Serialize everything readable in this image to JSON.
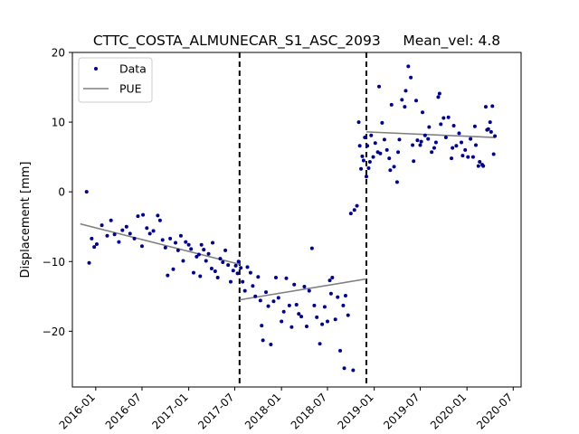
{
  "chart_data": {
    "type": "scatter",
    "title": "CTTC_COSTA_ALMUNECAR_S1_ASC_2093     Mean_vel: 4.8",
    "xlabel": "",
    "ylabel": "Displacement [mm]",
    "xlim": [
      "2015-10-01",
      "2020-08-01"
    ],
    "ylim": [
      -28,
      20
    ],
    "x_ticks": [
      "2016-01",
      "2016-07",
      "2017-01",
      "2017-07",
      "2018-01",
      "2018-07",
      "2019-01",
      "2019-07",
      "2020-01",
      "2020-07"
    ],
    "y_ticks": [
      -20,
      -10,
      0,
      10,
      20
    ],
    "grid": false,
    "legend": {
      "position": "top-left",
      "entries": [
        {
          "label": "Data",
          "marker": "dot",
          "color": "#00008b"
        },
        {
          "label": "PUE",
          "marker": "line",
          "color": "#808080"
        }
      ]
    },
    "breaks": [
      "2017-07-20",
      "2018-12-01"
    ],
    "series": [
      {
        "name": "Data",
        "color": "#00008b",
        "points": [
          [
            "2015-11-26",
            0.0
          ],
          [
            "2015-12-06",
            -10.2
          ],
          [
            "2015-12-16",
            -6.7
          ],
          [
            "2015-12-26",
            -7.9
          ],
          [
            "2016-01-05",
            -7.5
          ],
          [
            "2016-01-25",
            -4.8
          ],
          [
            "2016-02-15",
            -6.3
          ],
          [
            "2016-03-01",
            -4.1
          ],
          [
            "2016-03-15",
            -6.1
          ],
          [
            "2016-04-01",
            -7.2
          ],
          [
            "2016-04-15",
            -5.5
          ],
          [
            "2016-05-01",
            -5.0
          ],
          [
            "2016-05-15",
            -6.0
          ],
          [
            "2016-06-01",
            -6.7
          ],
          [
            "2016-06-15",
            -3.5
          ],
          [
            "2016-07-01",
            -7.8
          ],
          [
            "2016-07-05",
            -3.3
          ],
          [
            "2016-07-20",
            -5.2
          ],
          [
            "2016-08-01",
            -6.0
          ],
          [
            "2016-08-15",
            -5.6
          ],
          [
            "2016-09-01",
            -3.4
          ],
          [
            "2016-09-10",
            -4.1
          ],
          [
            "2016-09-20",
            -6.9
          ],
          [
            "2016-10-01",
            -8.0
          ],
          [
            "2016-10-10",
            -12.0
          ],
          [
            "2016-10-20",
            -6.7
          ],
          [
            "2016-11-01",
            -11.1
          ],
          [
            "2016-11-10",
            -7.3
          ],
          [
            "2016-11-20",
            -8.4
          ],
          [
            "2016-12-01",
            -6.3
          ],
          [
            "2016-12-10",
            -9.9
          ],
          [
            "2016-12-20",
            -7.2
          ],
          [
            "2017-01-01",
            -7.6
          ],
          [
            "2017-01-10",
            -8.2
          ],
          [
            "2017-01-20",
            -11.6
          ],
          [
            "2017-02-01",
            -9.3
          ],
          [
            "2017-02-10",
            -9.0
          ],
          [
            "2017-02-15",
            -12.1
          ],
          [
            "2017-02-20",
            -7.6
          ],
          [
            "2017-03-01",
            -8.3
          ],
          [
            "2017-03-10",
            -9.9
          ],
          [
            "2017-03-20",
            -8.9
          ],
          [
            "2017-04-01",
            -11.0
          ],
          [
            "2017-04-05",
            -7.3
          ],
          [
            "2017-04-15",
            -11.4
          ],
          [
            "2017-04-25",
            -12.3
          ],
          [
            "2017-05-05",
            -9.6
          ],
          [
            "2017-05-15",
            -10.1
          ],
          [
            "2017-05-25",
            -8.4
          ],
          [
            "2017-06-05",
            -10.5
          ],
          [
            "2017-06-15",
            -12.9
          ],
          [
            "2017-06-25",
            -11.3
          ],
          [
            "2017-07-05",
            -10.6
          ],
          [
            "2017-07-12",
            -11.7
          ],
          [
            "2017-07-16",
            -10.0
          ],
          [
            "2017-07-25",
            -10.9
          ],
          [
            "2017-08-01",
            -12.9
          ],
          [
            "2017-08-10",
            -14.2
          ],
          [
            "2017-08-20",
            -10.8
          ],
          [
            "2017-09-01",
            -11.6
          ],
          [
            "2017-09-10",
            -13.5
          ],
          [
            "2017-09-20",
            -15.0
          ],
          [
            "2017-10-01",
            -12.2
          ],
          [
            "2017-10-10",
            -15.6
          ],
          [
            "2017-10-15",
            -19.2
          ],
          [
            "2017-10-20",
            -21.3
          ],
          [
            "2017-11-01",
            -14.4
          ],
          [
            "2017-11-10",
            -16.4
          ],
          [
            "2017-11-20",
            -21.9
          ],
          [
            "2017-12-01",
            -15.7
          ],
          [
            "2017-12-10",
            -12.3
          ],
          [
            "2017-12-20",
            -15.2
          ],
          [
            "2018-01-01",
            -18.6
          ],
          [
            "2018-01-10",
            -17.2
          ],
          [
            "2018-01-20",
            -12.4
          ],
          [
            "2018-02-01",
            -16.3
          ],
          [
            "2018-02-10",
            -19.4
          ],
          [
            "2018-02-20",
            -13.3
          ],
          [
            "2018-03-01",
            -16.2
          ],
          [
            "2018-03-10",
            -17.5
          ],
          [
            "2018-03-20",
            -17.9
          ],
          [
            "2018-04-01",
            -13.6
          ],
          [
            "2018-04-10",
            -19.3
          ],
          [
            "2018-04-20",
            -14.2
          ],
          [
            "2018-05-01",
            -8.1
          ],
          [
            "2018-05-10",
            -16.3
          ],
          [
            "2018-05-20",
            -18.0
          ],
          [
            "2018-06-01",
            -21.8
          ],
          [
            "2018-06-10",
            -19.0
          ],
          [
            "2018-06-20",
            -16.5
          ],
          [
            "2018-07-01",
            -18.6
          ],
          [
            "2018-07-10",
            -12.7
          ],
          [
            "2018-07-15",
            -14.6
          ],
          [
            "2018-07-20",
            -12.3
          ],
          [
            "2018-08-01",
            -18.3
          ],
          [
            "2018-08-10",
            -15.1
          ],
          [
            "2018-08-20",
            -22.8
          ],
          [
            "2018-09-01",
            -16.3
          ],
          [
            "2018-09-05",
            -25.3
          ],
          [
            "2018-09-10",
            -14.9
          ],
          [
            "2018-09-20",
            -17.7
          ],
          [
            "2018-10-01",
            -3.1
          ],
          [
            "2018-10-10",
            -25.6
          ],
          [
            "2018-10-15",
            -2.6
          ],
          [
            "2018-10-25",
            -2.0
          ],
          [
            "2018-11-01",
            10.0
          ],
          [
            "2018-11-05",
            6.6
          ],
          [
            "2018-11-10",
            3.3
          ],
          [
            "2018-11-15",
            5.1
          ],
          [
            "2018-11-20",
            4.5
          ],
          [
            "2018-11-25",
            7.8
          ],
          [
            "2018-12-01",
            2.2
          ],
          [
            "2018-12-05",
            6.6
          ],
          [
            "2018-12-10",
            3.4
          ],
          [
            "2018-12-15",
            4.3
          ],
          [
            "2018-12-20",
            8.1
          ],
          [
            "2018-12-28",
            5.0
          ],
          [
            "2019-01-05",
            7.0
          ],
          [
            "2019-01-15",
            5.7
          ],
          [
            "2019-01-20",
            15.1
          ],
          [
            "2019-01-25",
            5.5
          ],
          [
            "2019-02-01",
            9.9
          ],
          [
            "2019-02-10",
            7.5
          ],
          [
            "2019-02-20",
            6.0
          ],
          [
            "2019-03-01",
            4.8
          ],
          [
            "2019-03-05",
            3.1
          ],
          [
            "2019-03-10",
            12.5
          ],
          [
            "2019-03-20",
            3.6
          ],
          [
            "2019-04-01",
            1.4
          ],
          [
            "2019-04-05",
            5.7
          ],
          [
            "2019-04-10",
            7.5
          ],
          [
            "2019-04-20",
            13.2
          ],
          [
            "2019-05-01",
            12.2
          ],
          [
            "2019-05-05",
            14.5
          ],
          [
            "2019-05-15",
            18.0
          ],
          [
            "2019-05-25",
            16.4
          ],
          [
            "2019-06-01",
            6.7
          ],
          [
            "2019-06-05",
            4.4
          ],
          [
            "2019-06-15",
            13.1
          ],
          [
            "2019-06-20",
            7.4
          ],
          [
            "2019-07-01",
            6.7
          ],
          [
            "2019-07-05",
            7.2
          ],
          [
            "2019-07-10",
            11.4
          ],
          [
            "2019-07-20",
            8.1
          ],
          [
            "2019-08-01",
            7.6
          ],
          [
            "2019-08-05",
            9.3
          ],
          [
            "2019-08-15",
            5.7
          ],
          [
            "2019-08-25",
            6.3
          ],
          [
            "2019-09-01",
            7.1
          ],
          [
            "2019-09-10",
            13.6
          ],
          [
            "2019-09-15",
            14.1
          ],
          [
            "2019-09-20",
            9.7
          ],
          [
            "2019-10-01",
            10.6
          ],
          [
            "2019-10-10",
            7.8
          ],
          [
            "2019-10-20",
            10.7
          ],
          [
            "2019-11-01",
            4.8
          ],
          [
            "2019-11-05",
            6.3
          ],
          [
            "2019-11-10",
            9.5
          ],
          [
            "2019-11-20",
            6.6
          ],
          [
            "2019-12-01",
            8.4
          ],
          [
            "2019-12-10",
            7.1
          ],
          [
            "2019-12-15",
            5.2
          ],
          [
            "2019-12-25",
            6.0
          ],
          [
            "2020-01-05",
            5.0
          ],
          [
            "2020-01-15",
            7.6
          ],
          [
            "2020-01-25",
            5.0
          ],
          [
            "2020-02-01",
            9.4
          ],
          [
            "2020-02-05",
            6.7
          ],
          [
            "2020-02-15",
            3.7
          ],
          [
            "2020-02-20",
            4.3
          ],
          [
            "2020-03-01",
            3.9
          ],
          [
            "2020-03-05",
            3.7
          ],
          [
            "2020-03-15",
            12.2
          ],
          [
            "2020-03-20",
            8.9
          ],
          [
            "2020-03-25",
            9.0
          ],
          [
            "2020-04-01",
            10.0
          ],
          [
            "2020-04-05",
            8.6
          ],
          [
            "2020-04-10",
            12.3
          ],
          [
            "2020-04-15",
            5.4
          ],
          [
            "2020-04-20",
            8.0
          ]
        ]
      },
      {
        "name": "PUE",
        "color": "#808080",
        "segments": [
          [
            [
              "2015-11-01",
              -4.6
            ],
            [
              "2017-07-20",
              -10.4
            ]
          ],
          [
            [
              "2017-07-20",
              -15.5
            ],
            [
              "2018-12-01",
              -12.5
            ]
          ],
          [
            [
              "2018-12-01",
              8.6
            ],
            [
              "2020-04-20",
              7.8
            ]
          ]
        ]
      }
    ]
  }
}
